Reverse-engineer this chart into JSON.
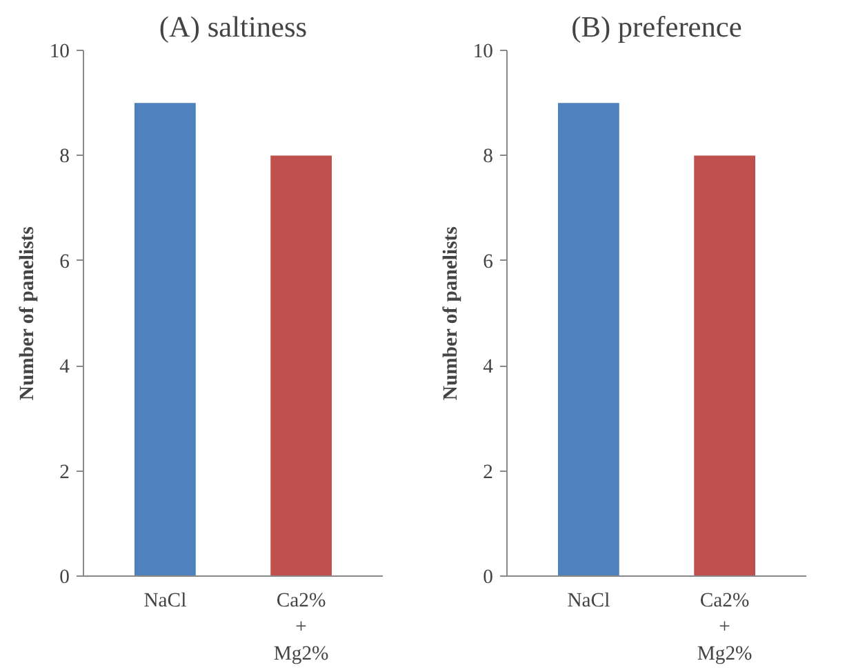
{
  "chart_data": [
    {
      "type": "bar",
      "title": "(A) saltiness",
      "ylabel": "Number of panelists",
      "categories": [
        "NaCl",
        "Ca2%\n+\nMg2%"
      ],
      "values": [
        9,
        8
      ],
      "colors": [
        "#4f81bd",
        "#c0504d"
      ],
      "ylim": [
        0,
        10
      ],
      "yticks": [
        0,
        2,
        4,
        6,
        8,
        10
      ],
      "grid": false
    },
    {
      "type": "bar",
      "title": "(B) preference",
      "ylabel": "Number of panelists",
      "categories": [
        "NaCl",
        "Ca2%\n+\nMg2%"
      ],
      "values": [
        9,
        8
      ],
      "colors": [
        "#4f81bd",
        "#c0504d"
      ],
      "ylim": [
        0,
        10
      ],
      "yticks": [
        0,
        2,
        4,
        6,
        8,
        10
      ],
      "grid": false
    }
  ]
}
